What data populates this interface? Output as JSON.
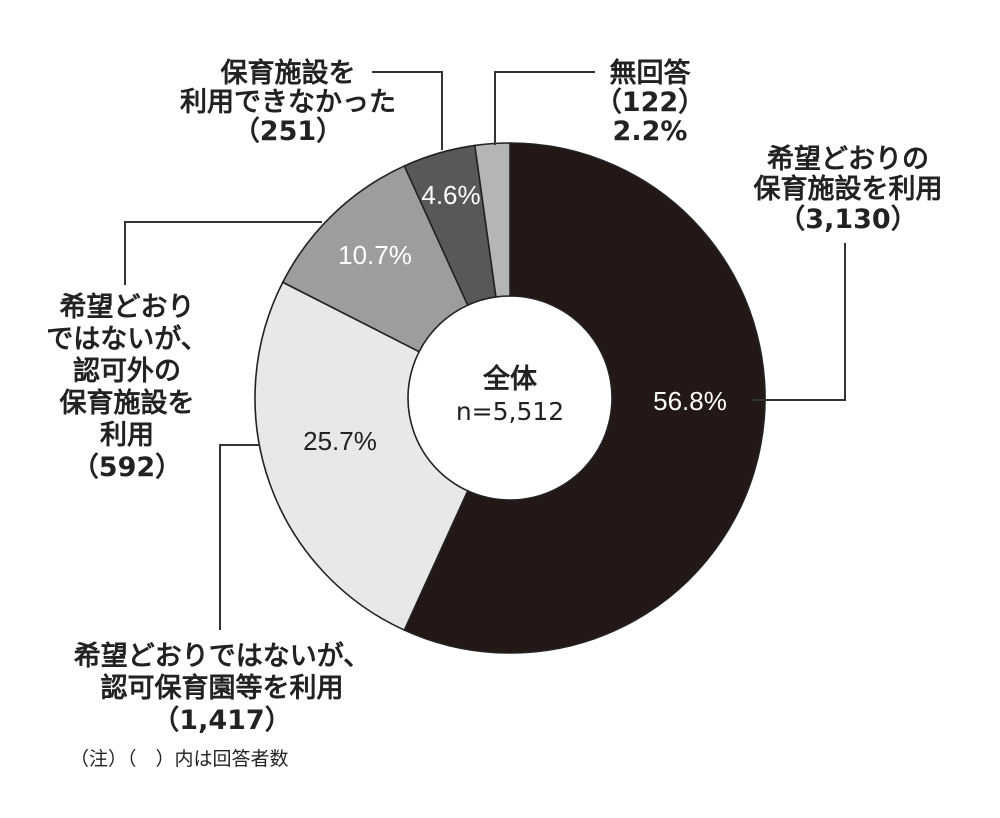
{
  "chart_data": {
    "type": "pie",
    "style": "donut",
    "center_label": "全体",
    "center_sublabel": "n=5,512",
    "note": "（注）（　）内は回答者数",
    "slices": [
      {
        "name_lines": [
          "希望どおりの",
          "保育施設を利用"
        ],
        "count": "（3,130）",
        "percent": 56.8,
        "percent_label": "56.8%",
        "color": "#231815",
        "text_color": "#ffffff"
      },
      {
        "name_lines": [
          "希望どおりではないが、",
          "認可保育園等を利用"
        ],
        "count": "（1,417）",
        "percent": 25.7,
        "percent_label": "25.7%",
        "color": "#e8e8e8",
        "text_color": "#222222"
      },
      {
        "name_lines": [
          "希望どおり",
          "ではないが、",
          "認可外の",
          "保育施設を",
          "利用"
        ],
        "count": "（592）",
        "percent": 10.7,
        "percent_label": "10.7%",
        "color": "#9d9d9d",
        "text_color": "#ffffff"
      },
      {
        "name_lines": [
          "保育施設を",
          "利用できなかった"
        ],
        "count": "（251）",
        "percent": 4.6,
        "percent_label": "4.6%",
        "color": "#595757",
        "text_color": "#ffffff"
      },
      {
        "name_lines": [
          "無回答"
        ],
        "count": "（122）",
        "percent": 2.2,
        "percent_label": "2.2%",
        "color": "#b5b5b5",
        "text_color": "#222222"
      }
    ]
  }
}
